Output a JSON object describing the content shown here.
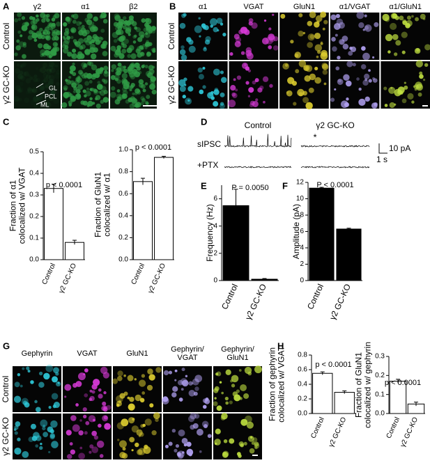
{
  "panels": [
    "A",
    "B",
    "C",
    "D",
    "E",
    "F",
    "G",
    "H"
  ],
  "image_panels": [
    {
      "columns": [
        "γ2",
        "α1",
        "β2"
      ],
      "rows": [
        "Control",
        "γ2 GC-KO"
      ],
      "colors": [
        "#2f9a45",
        "#2f9a45",
        "#2f9a45"
      ],
      "annotations": [
        "GL",
        "PCL",
        "ML"
      ]
    },
    {
      "columns": [
        "α1",
        "VGAT",
        "GluN1",
        "α1/VGAT",
        "α1/GluN1"
      ],
      "rows": [
        "Control",
        "γ2 GC-KO"
      ],
      "colors": [
        "#2ec8d8",
        "#d83ad8",
        "#e0d030",
        "#b0a0f0",
        "#c0e040"
      ]
    },
    {
      "columns": [
        "Gephyrin",
        "VGAT",
        "GluN1",
        "Gephyrin/\nVGAT",
        "Gephyrin/\nGluN1"
      ],
      "rows": [
        "Control",
        "γ2 GC-KO"
      ],
      "colors": [
        "#2ec8d8",
        "#d83ad8",
        "#e0d030",
        "#b0a0f0",
        "#c0e040"
      ]
    }
  ],
  "traces": {
    "columns": [
      "Control",
      "γ2 GC-KO"
    ],
    "rows": [
      "sIPSC",
      "+PTX"
    ],
    "marker": "*",
    "scale_y": "10 pA",
    "scale_x": "1 s"
  },
  "chart_data": [
    {
      "type": "bar",
      "ylabel": [
        "Fraction of α1",
        "colocalized w/ VGAT"
      ],
      "categories": [
        "Control",
        "γ2 GC-KO"
      ],
      "values": [
        0.33,
        0.08
      ],
      "errors": [
        0.02,
        0.01
      ],
      "color": "#ffffff",
      "ylim": [
        0,
        0.5
      ],
      "yticks": [
        {
          "value": 0,
          "label": "0.0"
        },
        0.1,
        0.2,
        0.3,
        0.4,
        0.5
      ],
      "annotation": "p < 0.0001"
    },
    {
      "type": "bar",
      "ylabel": [
        "Fraction of GluN1",
        "colocalized w/ α1"
      ],
      "categories": [
        "Control",
        "γ2 GC-KO"
      ],
      "values": [
        0.71,
        0.93
      ],
      "errors": [
        0.03,
        0.01
      ],
      "color": "#ffffff",
      "ylim": [
        0,
        1.0
      ],
      "yticks": [
        {
          "value": 0,
          "label": "0.0"
        },
        0.2,
        0.4,
        0.6,
        0.8,
        {
          "value": 1,
          "label": "1.0"
        }
      ],
      "annotation": "p < 0.0001"
    },
    {
      "type": "bar",
      "ylabel": [
        "Frequency (Hz)"
      ],
      "categories": [
        "Control",
        "γ2 GC-KO"
      ],
      "values": [
        5.5,
        0.1
      ],
      "errors": [
        1.2,
        0.05
      ],
      "color": "#000000",
      "ylim": [
        0,
        7
      ],
      "yticks": [
        0,
        2,
        4,
        6
      ],
      "annotation": "P = 0.0050"
    },
    {
      "type": "bar",
      "ylabel": [
        "Amplitude (pA)"
      ],
      "categories": [
        "Control",
        "γ2 GC-KO"
      ],
      "values": [
        11.3,
        6.3
      ],
      "errors": [
        0.1,
        0.1
      ],
      "color": "#000000",
      "ylim": [
        0,
        12
      ],
      "yticks": [
        0,
        2,
        4,
        6,
        8,
        10,
        12
      ],
      "annotation": "P < 0.0001"
    },
    {
      "type": "bar",
      "ylabel": [
        "Fraction of gephyrin",
        "colocalized w/ VGAT"
      ],
      "categories": [
        "Control",
        "γ2 GC-KO"
      ],
      "values": [
        0.55,
        0.29
      ],
      "errors": [
        0.02,
        0.02
      ],
      "color": "#ffffff",
      "ylim": [
        0,
        0.8
      ],
      "yticks": [
        {
          "value": 0,
          "label": "0.0"
        },
        0.2,
        0.4,
        0.6,
        0.8
      ],
      "annotation": "p < 0.0001"
    },
    {
      "type": "bar",
      "ylabel": [
        "Fraction of GluN1",
        "colocalized w/ gephyrin"
      ],
      "categories": [
        "Control",
        "γ2 GC-KO"
      ],
      "values": [
        0.17,
        0.05
      ],
      "errors": [
        0.01,
        0.01
      ],
      "color": "#ffffff",
      "ylim": [
        0,
        0.3
      ],
      "yticks": [
        {
          "value": 0,
          "label": "0.0"
        },
        0.1,
        0.2,
        0.3
      ],
      "annotation": "p < 0.0001"
    }
  ]
}
